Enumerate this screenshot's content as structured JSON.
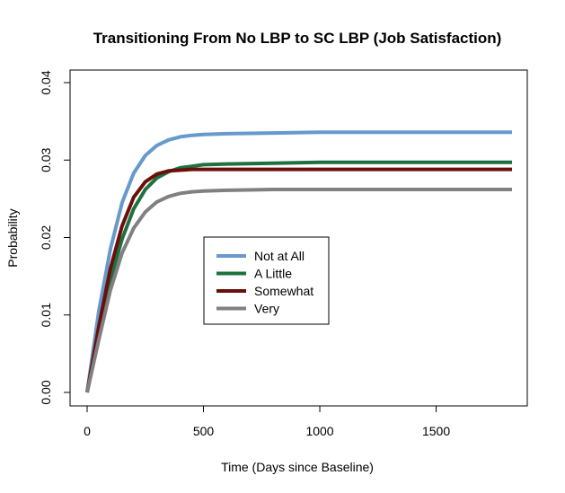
{
  "chart_data": {
    "type": "line",
    "title": "Transitioning From No LBP to SC LBP (Job Satisfaction)",
    "xlabel": "Time (Days since Baseline)",
    "ylabel": "Probability",
    "xlim": [
      0,
      1826
    ],
    "ylim": [
      0,
      0.04
    ],
    "x_ticks": [
      "0",
      "500",
      "1000",
      "1500"
    ],
    "y_ticks": [
      "0.00",
      "0.01",
      "0.02",
      "0.03",
      "0.04"
    ],
    "legend_position": "center-left",
    "grid": false,
    "series": [
      {
        "name": "Not at All",
        "color": "#6699cc",
        "x": [
          0,
          50,
          100,
          150,
          200,
          250,
          300,
          350,
          400,
          450,
          500,
          600,
          800,
          1000,
          1200,
          1500,
          1826
        ],
        "y": [
          0,
          0.0105,
          0.0185,
          0.0245,
          0.0283,
          0.0306,
          0.0319,
          0.0326,
          0.033,
          0.0332,
          0.0333,
          0.0334,
          0.0335,
          0.0336,
          0.0336,
          0.0336,
          0.0336
        ]
      },
      {
        "name": "A Little",
        "color": "#1e7040",
        "x": [
          0,
          50,
          100,
          150,
          200,
          250,
          300,
          350,
          400,
          450,
          500,
          600,
          800,
          1000,
          1200,
          1500,
          1826
        ],
        "y": [
          0,
          0.0075,
          0.0145,
          0.0198,
          0.0237,
          0.0262,
          0.0277,
          0.0285,
          0.029,
          0.0292,
          0.0294,
          0.0295,
          0.0296,
          0.0297,
          0.0297,
          0.0297,
          0.0297
        ]
      },
      {
        "name": "Somewhat",
        "color": "#6b0f0a",
        "x": [
          0,
          50,
          100,
          150,
          200,
          250,
          300,
          350,
          400,
          450,
          500,
          600,
          800,
          1000,
          1200,
          1500,
          1826
        ],
        "y": [
          0,
          0.0085,
          0.016,
          0.0215,
          0.0252,
          0.0272,
          0.0282,
          0.0286,
          0.0287,
          0.0288,
          0.0288,
          0.0288,
          0.0288,
          0.0288,
          0.0288,
          0.0288,
          0.0288
        ]
      },
      {
        "name": "Very",
        "color": "#808080",
        "x": [
          0,
          50,
          100,
          150,
          200,
          250,
          300,
          350,
          400,
          450,
          500,
          600,
          800,
          1000,
          1200,
          1500,
          1826
        ],
        "y": [
          0,
          0.0068,
          0.0132,
          0.018,
          0.0212,
          0.0233,
          0.0246,
          0.0253,
          0.0257,
          0.0259,
          0.026,
          0.0261,
          0.0262,
          0.0262,
          0.0262,
          0.0262,
          0.0262
        ]
      }
    ]
  }
}
